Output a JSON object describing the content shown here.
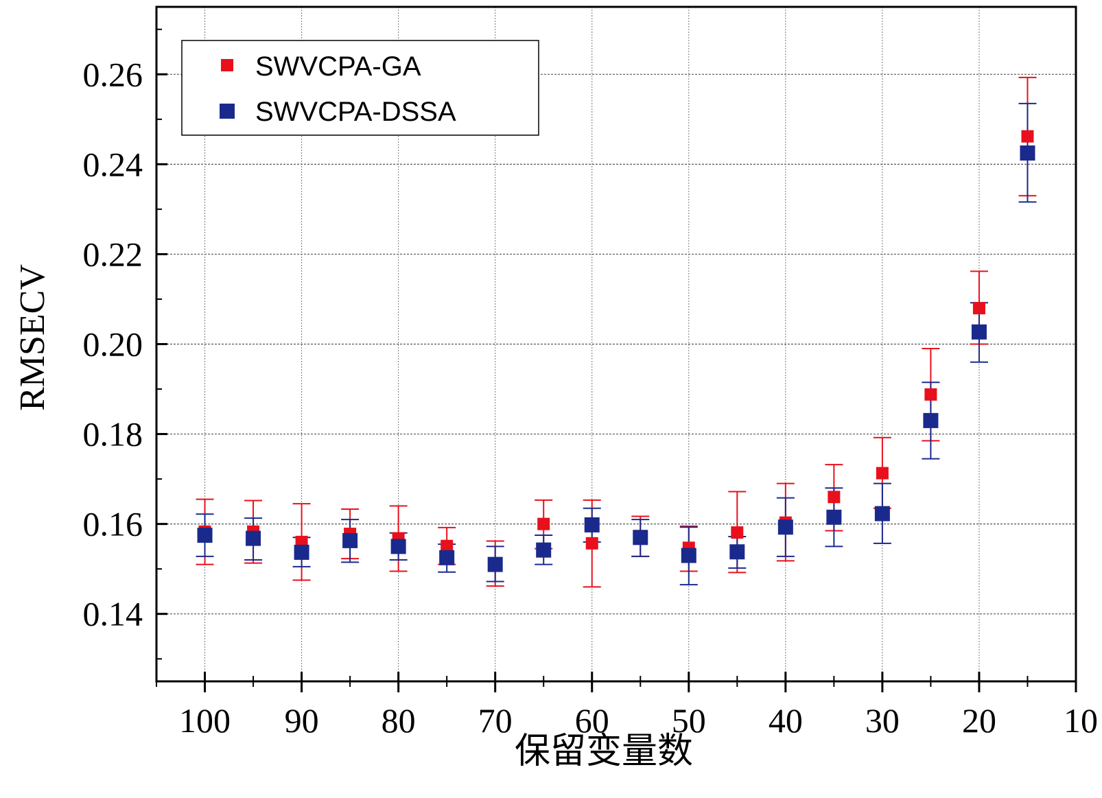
{
  "chart_data": {
    "type": "scatter",
    "title": "",
    "xlabel": "保留变量数",
    "ylabel": "RMSECV",
    "xlim": [
      105,
      10
    ],
    "ylim": [
      0.125,
      0.275
    ],
    "x_reversed": true,
    "grid": true,
    "legend_position": "top-left",
    "xticks": [
      100,
      90,
      80,
      70,
      60,
      50,
      40,
      30,
      20,
      10
    ],
    "xtick_labels": [
      "100",
      "90",
      "80",
      "70",
      "60",
      "50",
      "40",
      "30",
      "20",
      "10"
    ],
    "yticks": [
      0.14,
      0.16,
      0.18,
      0.2,
      0.22,
      0.24,
      0.26
    ],
    "ytick_labels": [
      "0.14",
      "0.16",
      "0.18",
      "0.20",
      "0.22",
      "0.24",
      "0.26"
    ],
    "x": [
      100,
      95,
      90,
      85,
      80,
      75,
      70,
      65,
      60,
      55,
      50,
      45,
      40,
      35,
      30,
      25,
      20,
      15
    ],
    "series": [
      {
        "name": "SWVCPA-GA",
        "color": "#e8101c",
        "values": [
          0.1583,
          0.1583,
          0.156,
          0.1578,
          0.1568,
          0.1551,
          0.1512,
          0.16,
          0.1557,
          0.1573,
          0.1547,
          0.1581,
          0.1603,
          0.166,
          0.1713,
          0.1888,
          0.208,
          0.2462
        ],
        "err_low": [
          0.151,
          0.1513,
          0.1475,
          0.1523,
          0.1495,
          0.151,
          0.1462,
          0.1545,
          0.146,
          0.1528,
          0.1495,
          0.1492,
          0.1518,
          0.1585,
          0.1635,
          0.1785,
          0.2,
          0.233
        ],
        "err_high": [
          0.1655,
          0.1652,
          0.1645,
          0.1633,
          0.164,
          0.1592,
          0.1562,
          0.1653,
          0.1653,
          0.1617,
          0.1595,
          0.1672,
          0.169,
          0.1732,
          0.1792,
          0.199,
          0.2162,
          0.2593
        ]
      },
      {
        "name": "SWVCPA-DSSA",
        "color": "#1a2a8c",
        "values": [
          0.1575,
          0.1568,
          0.1537,
          0.1563,
          0.155,
          0.1525,
          0.151,
          0.1542,
          0.1598,
          0.157,
          0.153,
          0.1538,
          0.1593,
          0.1615,
          0.1623,
          0.183,
          0.2027,
          0.2425
        ],
        "err_low": [
          0.1528,
          0.152,
          0.1505,
          0.1515,
          0.152,
          0.1493,
          0.1472,
          0.151,
          0.156,
          0.1528,
          0.1465,
          0.1502,
          0.1528,
          0.155,
          0.1557,
          0.1745,
          0.196,
          0.2316
        ],
        "err_high": [
          0.1622,
          0.1613,
          0.157,
          0.161,
          0.158,
          0.1555,
          0.155,
          0.1575,
          0.1635,
          0.161,
          0.1593,
          0.1572,
          0.1658,
          0.168,
          0.169,
          0.1915,
          0.2092,
          0.2535
        ]
      }
    ]
  }
}
